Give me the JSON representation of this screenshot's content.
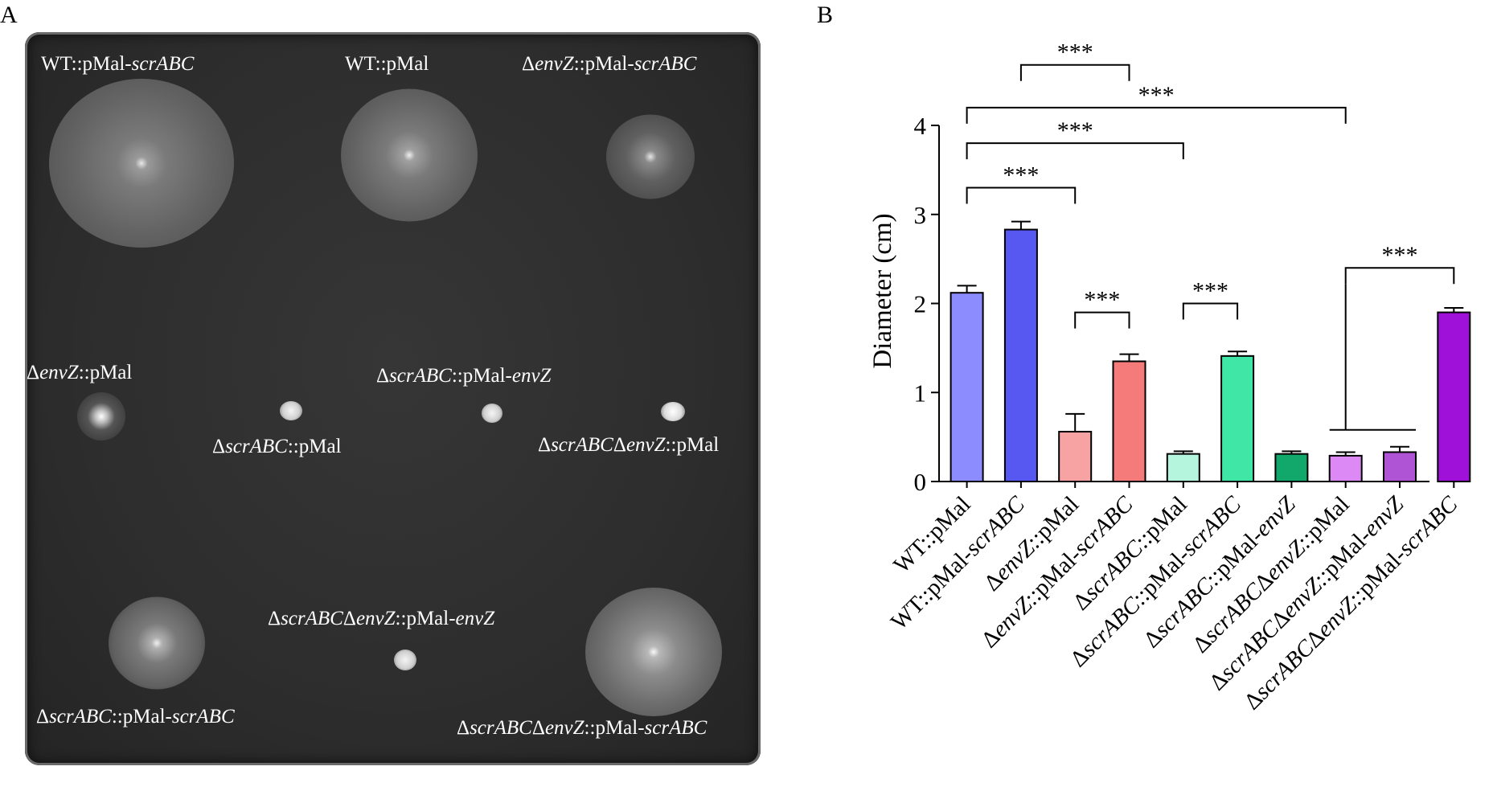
{
  "panels": {
    "a_label": "A",
    "b_label": "B"
  },
  "plate_labels": {
    "l1": {
      "a": "WT::pMal-",
      "b": "scrABC",
      "c": ""
    },
    "l2": {
      "a": "WT::pMal",
      "b": "",
      "c": ""
    },
    "l3": {
      "a": "Δ",
      "b": "envZ",
      "c": "::pMal-",
      "d": "scrABC"
    },
    "l4": {
      "a": "Δ",
      "b": "envZ",
      "c": "::pMal"
    },
    "l5": {
      "a": "Δ",
      "b": "scrABC",
      "c": "::pMal-",
      "d": "envZ"
    },
    "l6": {
      "a": "Δ",
      "b": "scrABC",
      "c": "::pMal"
    },
    "l7": {
      "a": "Δ",
      "b": "scrABC",
      "c": "Δ",
      "d": "envZ",
      "e": "::pMal"
    },
    "l8": {
      "a": "Δ",
      "b": "scrABC",
      "c": "Δ",
      "d": "envZ",
      "e": "::pMal-",
      "f": "envZ"
    },
    "l9": {
      "a": "Δ",
      "b": "scrABC",
      "c": "::pMal-",
      "d": "scrABC"
    },
    "l10": {
      "a": "Δ",
      "b": "scrABC",
      "c": "Δ",
      "d": "envZ",
      "e": "::pMal-",
      "f": "scrABC"
    }
  },
  "chart_data": {
    "type": "bar",
    "ylabel": "Diameter (cm)",
    "ylim": [
      0,
      4
    ],
    "yticks": [
      0,
      1,
      2,
      3,
      4
    ],
    "categories": [
      [
        {
          "t": "WT::pMal",
          "i": false
        }
      ],
      [
        {
          "t": "WT::pMal-",
          "i": false
        },
        {
          "t": "scrABC",
          "i": true
        }
      ],
      [
        {
          "t": "Δ",
          "i": false
        },
        {
          "t": "envZ",
          "i": true
        },
        {
          "t": "::pMal",
          "i": false
        }
      ],
      [
        {
          "t": "Δ",
          "i": false
        },
        {
          "t": "envZ",
          "i": true
        },
        {
          "t": "::pMal-",
          "i": false
        },
        {
          "t": "scrABC",
          "i": true
        }
      ],
      [
        {
          "t": "Δ",
          "i": false
        },
        {
          "t": "scrABC",
          "i": true
        },
        {
          "t": "::pMal",
          "i": false
        }
      ],
      [
        {
          "t": "Δ",
          "i": false
        },
        {
          "t": "scrABC",
          "i": true
        },
        {
          "t": "::pMal-",
          "i": false
        },
        {
          "t": "scrABC",
          "i": true
        }
      ],
      [
        {
          "t": "Δ",
          "i": false
        },
        {
          "t": "scrABC",
          "i": true
        },
        {
          "t": "::pMal-",
          "i": false
        },
        {
          "t": "envZ",
          "i": true
        }
      ],
      [
        {
          "t": "Δ",
          "i": false
        },
        {
          "t": "scrABC",
          "i": true
        },
        {
          "t": "Δ",
          "i": false
        },
        {
          "t": "envZ",
          "i": true
        },
        {
          "t": "::pMal",
          "i": false
        }
      ],
      [
        {
          "t": "Δ",
          "i": false
        },
        {
          "t": "scrABC",
          "i": true
        },
        {
          "t": "Δ",
          "i": false
        },
        {
          "t": "envZ",
          "i": true
        },
        {
          "t": "::pMal-",
          "i": false
        },
        {
          "t": "envZ",
          "i": true
        }
      ],
      [
        {
          "t": "Δ",
          "i": false
        },
        {
          "t": "scrABC",
          "i": true
        },
        {
          "t": "Δ",
          "i": false
        },
        {
          "t": "envZ",
          "i": true
        },
        {
          "t": "::pMal-",
          "i": false
        },
        {
          "t": "scrABC",
          "i": true
        }
      ]
    ],
    "values": [
      2.12,
      2.83,
      0.56,
      1.35,
      0.31,
      1.41,
      0.31,
      0.29,
      0.33,
      1.9
    ],
    "errors": [
      0.08,
      0.09,
      0.2,
      0.08,
      0.03,
      0.05,
      0.03,
      0.04,
      0.06,
      0.05
    ],
    "colors": [
      "#8c8cff",
      "#5757f2",
      "#f7a3a3",
      "#f57a7a",
      "#b5f5de",
      "#3fe6a5",
      "#12a86c",
      "#dc88f5",
      "#b054d6",
      "#9f10d9"
    ],
    "significance": [
      {
        "from": 1,
        "to": 3,
        "y": 4.68,
        "label": "***"
      },
      {
        "from": 0,
        "to": 7,
        "y": 4.2,
        "label": "***"
      },
      {
        "from": 0,
        "to": 4,
        "y": 3.8,
        "label": "***"
      },
      {
        "from": 0,
        "to": 2,
        "y": 3.3,
        "label": "***"
      },
      {
        "from": 2,
        "to": 3,
        "y": 1.9,
        "label": "***"
      },
      {
        "from": 4,
        "to": 5,
        "y": 2.0,
        "label": "***"
      },
      {
        "from": 7,
        "to": 9,
        "y": 2.4,
        "label": "***"
      }
    ]
  }
}
